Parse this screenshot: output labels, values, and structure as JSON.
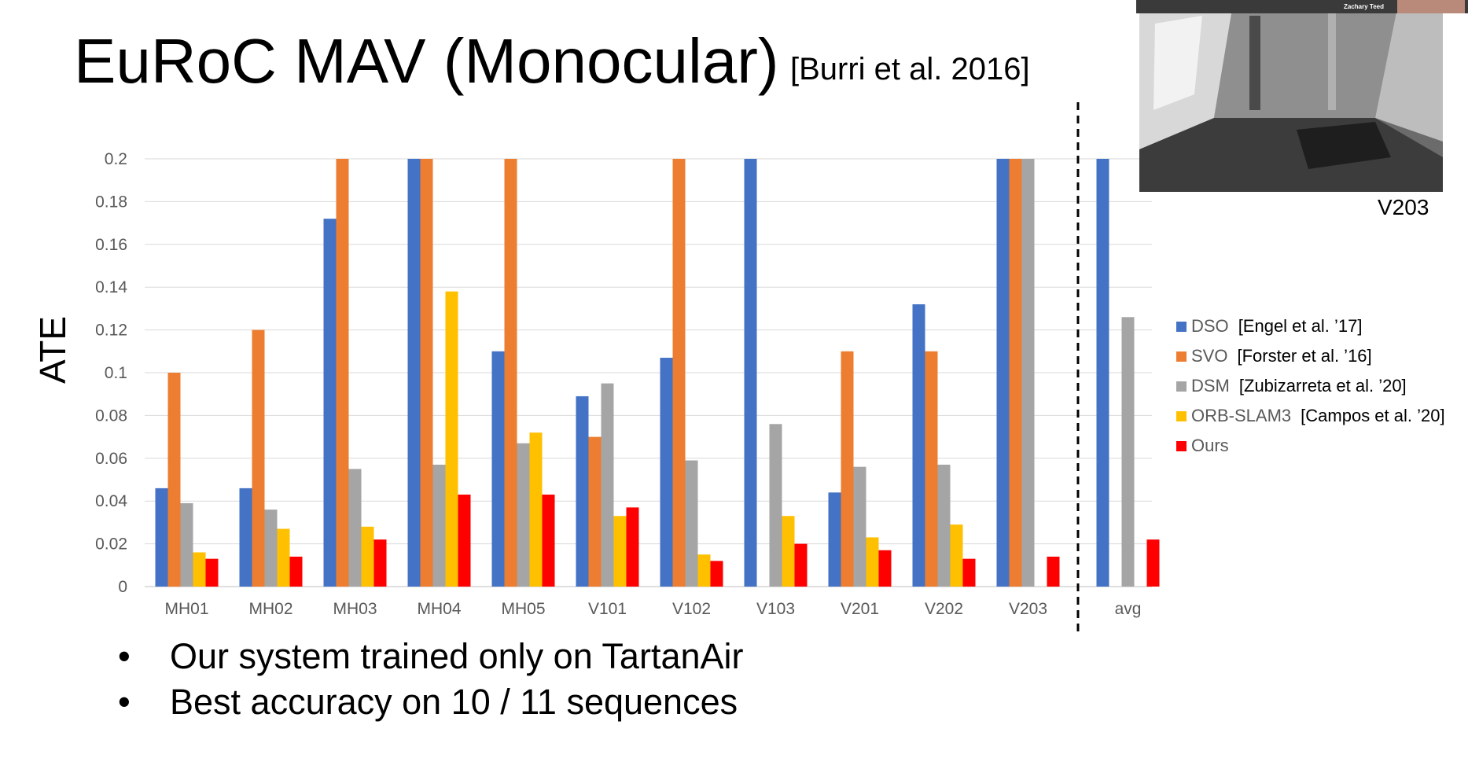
{
  "slide": {
    "title": "EuRoC MAV (Monocular)",
    "citation": "[Burri et al. 2016]",
    "bullets": [
      "Our system trained only on TartanAir",
      "Best accuracy on 10 / 11 sequences"
    ],
    "bullet_symbol": "•"
  },
  "video": {
    "caption": "V203",
    "speaker_name": "Zachary Teed"
  },
  "chart_data": {
    "type": "bar",
    "ylabel": "ATE",
    "xlabel": "",
    "ylim": [
      0,
      0.2
    ],
    "yticks": [
      0,
      0.02,
      0.04,
      0.06,
      0.08,
      0.1,
      0.12,
      0.14,
      0.16,
      0.18,
      0.2
    ],
    "grid": true,
    "legend_position": "right",
    "categories": [
      "MH01",
      "MH02",
      "MH03",
      "MH04",
      "MH05",
      "V101",
      "V102",
      "V103",
      "V201",
      "V202",
      "V203",
      "avg"
    ],
    "separator_before": "avg",
    "series": [
      {
        "name": "DSO",
        "citation": "[Engel et al. ’17]",
        "color": "#4472c4",
        "values": [
          0.046,
          0.046,
          0.172,
          0.2,
          0.11,
          0.089,
          0.107,
          0.2,
          0.044,
          0.132,
          0.2,
          0.2
        ]
      },
      {
        "name": "SVO",
        "citation": "[Forster et al. ’16]",
        "color": "#ed7d31",
        "values": [
          0.1,
          0.12,
          0.2,
          0.2,
          0.2,
          0.07,
          0.2,
          null,
          0.11,
          0.11,
          0.2,
          null
        ]
      },
      {
        "name": "DSM",
        "citation": "[Zubizarreta et al. ’20]",
        "color": "#a5a5a5",
        "values": [
          0.039,
          0.036,
          0.055,
          0.057,
          0.067,
          0.095,
          0.059,
          0.076,
          0.056,
          0.057,
          0.2,
          0.126
        ]
      },
      {
        "name": "ORB-SLAM3",
        "citation": "[Campos et al. ’20]",
        "color": "#ffc000",
        "values": [
          0.016,
          0.027,
          0.028,
          0.138,
          0.072,
          0.033,
          0.015,
          0.033,
          0.023,
          0.029,
          null,
          null
        ]
      },
      {
        "name": "Ours",
        "citation": "",
        "color": "#ff0000",
        "values": [
          0.013,
          0.014,
          0.022,
          0.043,
          0.043,
          0.037,
          0.012,
          0.02,
          0.017,
          0.013,
          0.014,
          0.022
        ]
      }
    ]
  }
}
